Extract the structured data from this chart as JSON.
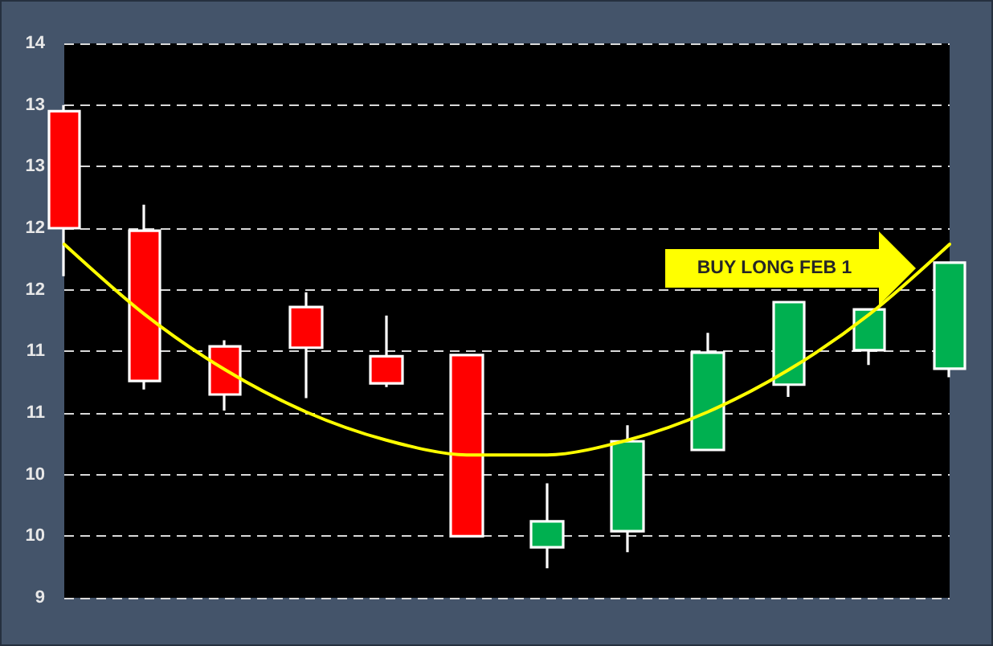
{
  "chart_data": {
    "type": "candlestick",
    "categories": [
      null,
      null,
      null,
      null,
      null,
      null,
      null,
      null,
      null,
      null,
      null,
      null
    ],
    "ohlc": [
      [
        12.95,
        13.0,
        11.61,
        12.0
      ],
      [
        11.98,
        12.19,
        10.69,
        10.76
      ],
      [
        11.04,
        11.09,
        10.52,
        10.65
      ],
      [
        11.36,
        11.48,
        10.62,
        11.03
      ],
      [
        10.96,
        11.29,
        10.71,
        10.74
      ],
      [
        10.97,
        10.97,
        9.5,
        9.5
      ],
      [
        9.41,
        9.93,
        9.24,
        9.62
      ],
      [
        9.54,
        10.4,
        9.37,
        10.27
      ],
      [
        10.2,
        11.15,
        10.2,
        10.99
      ],
      [
        10.73,
        11.4,
        10.63,
        11.4
      ],
      [
        11.01,
        11.34,
        10.89,
        11.34
      ],
      [
        10.86,
        11.72,
        10.79,
        11.72
      ]
    ],
    "colors": [
      "#ff0000",
      "#ff0000",
      "#ff0000",
      "#ff0000",
      "#ff0000",
      "#ff0000",
      "#00b050",
      "#00b050",
      "#00b050",
      "#00b050",
      "#00b050",
      "#00b050"
    ],
    "series": [
      {
        "type": "line",
        "color": "#ffff00",
        "values": [
          11.87,
          11.3,
          10.85,
          10.51,
          10.28,
          10.16,
          10.16,
          10.28,
          10.51,
          10.85,
          11.3,
          11.87
        ]
      }
    ],
    "ylim": [
      9,
      13.5
    ],
    "yticks": [
      9,
      {
        "value": 9.5,
        "label": "10"
      },
      10,
      {
        "value": 10.5,
        "label": "11"
      },
      11,
      {
        "value": 11.5,
        "label": "12"
      },
      12,
      {
        "value": 12.5,
        "label": "13"
      },
      13,
      {
        "value": 13.5,
        "label": "14"
      }
    ],
    "grid": "y",
    "tick_labels": "y",
    "marker": "none",
    "annotations": [
      "BUY LONG FEB 1"
    ]
  }
}
